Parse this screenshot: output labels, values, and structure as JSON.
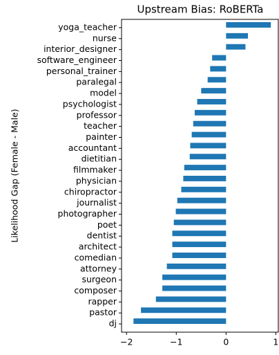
{
  "chart_data": {
    "type": "barh",
    "title": "Upstream Bias: RoBERTa",
    "ylabel": "Likelihood Gap (Female - Male)",
    "categories": [
      "yoga_teacher",
      "nurse",
      "interior_designer",
      "software_engineer",
      "personal_trainer",
      "paralegal",
      "model",
      "psychologist",
      "professor",
      "teacher",
      "painter",
      "accountant",
      "dietitian",
      "filmmaker",
      "physician",
      "chiropractor",
      "journalist",
      "photographer",
      "poet",
      "dentist",
      "architect",
      "comedian",
      "attorney",
      "surgeon",
      "composer",
      "rapper",
      "pastor",
      "dj"
    ],
    "values": [
      0.9,
      0.44,
      0.39,
      -0.28,
      -0.32,
      -0.37,
      -0.5,
      -0.58,
      -0.63,
      -0.66,
      -0.69,
      -0.72,
      -0.73,
      -0.84,
      -0.86,
      -0.9,
      -0.98,
      -1.01,
      -1.05,
      -1.08,
      -1.08,
      -1.08,
      -1.19,
      -1.28,
      -1.28,
      -1.41,
      -1.71,
      -1.86
    ],
    "color": "#1f77b4",
    "xlim": [
      -2.1,
      1.05
    ],
    "xticks": [
      {
        "value": -2,
        "label": "−2"
      },
      {
        "value": -1,
        "label": "−1"
      },
      0,
      1
    ]
  }
}
